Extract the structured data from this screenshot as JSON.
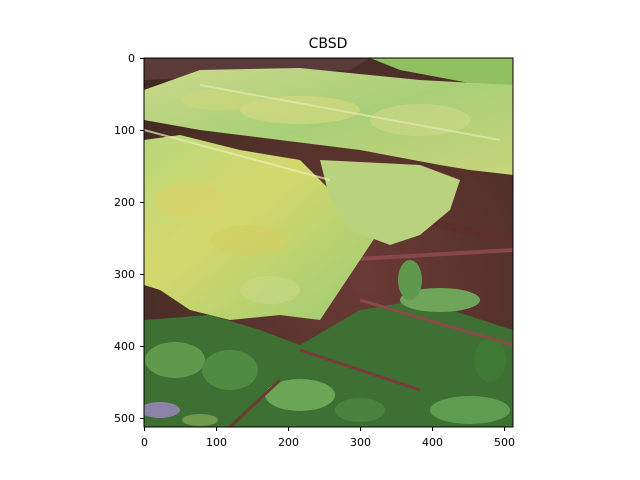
{
  "figure": {
    "title": "CBSD",
    "image_description_alt": "leaf photo"
  },
  "axes": {
    "x_ticks": [
      "0",
      "100",
      "200",
      "300",
      "400",
      "500"
    ],
    "y_ticks": [
      "0",
      "100",
      "200",
      "300",
      "400",
      "500"
    ],
    "x_range": [
      0,
      512
    ],
    "y_range": [
      0,
      512
    ]
  },
  "colors": {
    "leaf_light": "#d9e39a",
    "leaf_green": "#a9cf7a",
    "leaf_yellow": "#d7d76a",
    "leaf_dark": "#6e9a4e",
    "background_dark": "#5b2f2a",
    "background_maroon": "#7a3b3b",
    "grass_green": "#3d7a35",
    "grass_mid": "#5f9a4c"
  }
}
